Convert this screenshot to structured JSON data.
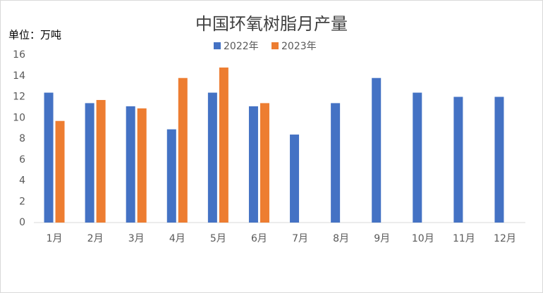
{
  "chart_data": {
    "type": "bar",
    "title": "中国环氧树脂月产量",
    "y_label": "单位：万吨",
    "categories": [
      "1月",
      "2月",
      "3月",
      "4月",
      "5月",
      "6月",
      "7月",
      "8月",
      "9月",
      "10月",
      "11月",
      "12月"
    ],
    "series": [
      {
        "name": "2022年",
        "color": "#4472c4",
        "values": [
          12.4,
          11.4,
          11.1,
          8.9,
          12.4,
          11.1,
          8.4,
          11.4,
          13.8,
          12.4,
          12.0,
          12.0
        ]
      },
      {
        "name": "2023年",
        "color": "#ed7d31",
        "values": [
          9.7,
          11.7,
          10.9,
          13.8,
          14.8,
          11.4,
          null,
          null,
          null,
          null,
          null,
          null
        ]
      }
    ],
    "ylim": [
      0,
      16
    ],
    "yticks": [
      0,
      2,
      4,
      6,
      8,
      10,
      12,
      14,
      16
    ],
    "grid": false,
    "legend": "top"
  }
}
